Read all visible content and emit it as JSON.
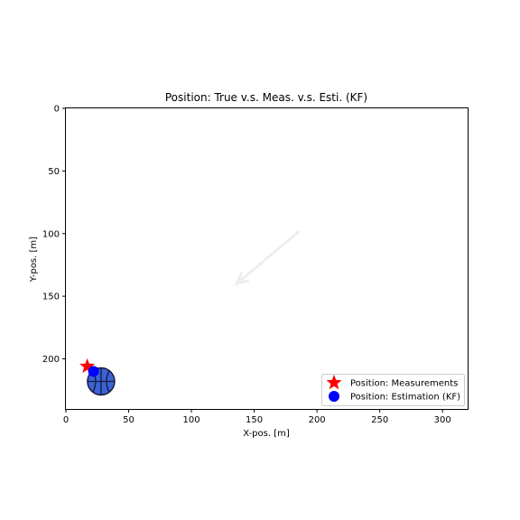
{
  "chart_data": {
    "type": "scatter",
    "title": "Position: True v.s. Meas. v.s. Esti. (KF)",
    "xlabel": "X-pos. [m]",
    "ylabel": "Y-pos. [m]",
    "xlim": [
      0,
      320
    ],
    "ylim": [
      240,
      0
    ],
    "y_inverted": true,
    "xticks": [
      0,
      50,
      100,
      150,
      200,
      250,
      300
    ],
    "yticks": [
      0,
      50,
      100,
      150,
      200
    ],
    "grid": false,
    "legend_position": "lower-right",
    "series": [
      {
        "name": "Position: Measurements",
        "marker": "star",
        "color": "#ff0000",
        "points": [
          {
            "x": 17,
            "y": 206
          }
        ]
      },
      {
        "name": "Position: Estimation (KF)",
        "marker": "circle",
        "color": "#0000ff",
        "points": [
          {
            "x": 22,
            "y": 210
          }
        ]
      }
    ],
    "annotations": {
      "ball_icon": {
        "name": "basketball-icon",
        "center": {
          "x": 28,
          "y": 218
        },
        "color": "#3b63d6"
      },
      "arrow": {
        "name": "faint-arrow",
        "from": {
          "x": 186,
          "y": 98
        },
        "to": {
          "x": 136,
          "y": 140
        },
        "color": "#eeeeee"
      }
    }
  }
}
